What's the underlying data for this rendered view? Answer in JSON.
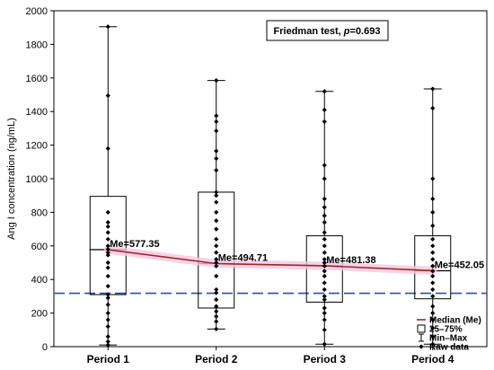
{
  "chart_data": {
    "type": "boxplot",
    "ylabel": "Ang I concentration (ng/mL)",
    "ylim": [
      0,
      2000
    ],
    "yticks": [
      0,
      200,
      400,
      600,
      800,
      1000,
      1200,
      1400,
      1600,
      1800,
      2000
    ],
    "categories": [
      "Period 1",
      "Period 2",
      "Period 3",
      "Period 4"
    ],
    "boxes": [
      {
        "min": 10,
        "q1": 310,
        "median": 577.35,
        "q3": 895,
        "max": 1905,
        "median_label": "Me=577.35",
        "raw": [
          10,
          30,
          60,
          120,
          160,
          200,
          250,
          290,
          310,
          360,
          420,
          470,
          500,
          545,
          560,
          580,
          600,
          640,
          680,
          715,
          740,
          800,
          1180,
          1495,
          1905
        ]
      },
      {
        "min": 105,
        "q1": 230,
        "median": 494.71,
        "q3": 920,
        "max": 1585,
        "median_label": "Me=494.71",
        "raw": [
          105,
          150,
          180,
          210,
          240,
          280,
          320,
          340,
          420,
          480,
          500,
          520,
          560,
          600,
          640,
          700,
          750,
          800,
          860,
          900,
          920,
          1050,
          1120,
          1165,
          1285,
          1340,
          1375,
          1585
        ]
      },
      {
        "min": 15,
        "q1": 265,
        "median": 481.38,
        "q3": 660,
        "max": 1520,
        "median_label": "Me=481.38",
        "raw": [
          15,
          100,
          160,
          200,
          230,
          280,
          300,
          340,
          380,
          420,
          450,
          480,
          500,
          520,
          560,
          600,
          640,
          680,
          740,
          780,
          830,
          880,
          1000,
          1080,
          1340,
          1410,
          1520
        ]
      },
      {
        "min": 15,
        "q1": 285,
        "median": 452.05,
        "q3": 660,
        "max": 1535,
        "median_label": "Me=452.05",
        "raw": [
          15,
          60,
          110,
          160,
          200,
          240,
          300,
          340,
          380,
          420,
          450,
          480,
          520,
          560,
          600,
          640,
          720,
          800,
          880,
          1000,
          1420,
          1535
        ]
      }
    ],
    "reference_line": {
      "value": 318,
      "color": "#2a4fa8"
    },
    "median_line_color": "#a02818",
    "annotation": {
      "prefix": "Friedman test, ",
      "p_symbol": "p",
      "suffix": "=0.693"
    },
    "legend": {
      "placement": "bottom-right",
      "items": [
        {
          "label": "Median (Me)",
          "symbol": "line"
        },
        {
          "label": "25–75%",
          "symbol": "box"
        },
        {
          "label": "Min–Max",
          "symbol": "whisker"
        },
        {
          "label": "Raw data",
          "symbol": "diamond"
        }
      ]
    },
    "grid": false
  }
}
